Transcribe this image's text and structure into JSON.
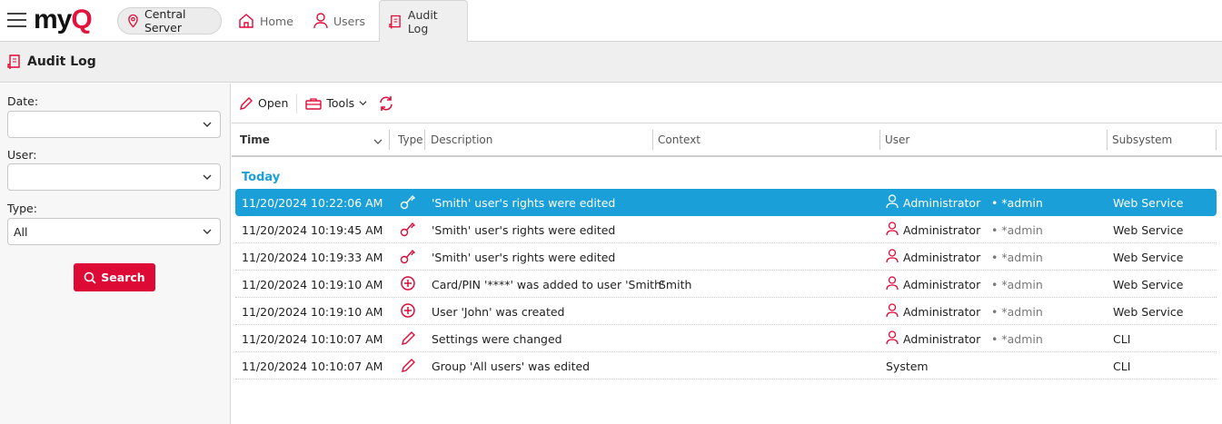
{
  "app": {
    "logo": "myQ",
    "server": "Central Server"
  },
  "tabs": [
    {
      "label": "Home",
      "icon": "home-icon"
    },
    {
      "label": "Users",
      "icon": "user-icon"
    },
    {
      "label": "Audit Log",
      "icon": "audit-log-icon",
      "active": true
    }
  ],
  "page_title": "Audit Log",
  "filters": {
    "date_label": "Date:",
    "date_value": "",
    "user_label": "User:",
    "user_value": "",
    "type_label": "Type:",
    "type_value": "All",
    "search_label": "Search"
  },
  "toolbar": {
    "open": "Open",
    "tools": "Tools"
  },
  "columns": [
    "Time",
    "Type",
    "Description",
    "Context",
    "User",
    "Subsystem"
  ],
  "group": "Today",
  "rows": [
    {
      "time": "11/20/2024 10:22:06 AM",
      "type": "key",
      "description": "'Smith' user's rights were edited",
      "context": "",
      "user": "Administrator",
      "login": "• *admin",
      "subsystem": "Web Service",
      "selected": true
    },
    {
      "time": "11/20/2024 10:19:45 AM",
      "type": "key",
      "description": "'Smith' user's rights were edited",
      "context": "",
      "user": "Administrator",
      "login": "• *admin",
      "subsystem": "Web Service"
    },
    {
      "time": "11/20/2024 10:19:33 AM",
      "type": "key",
      "description": "'Smith' user's rights were edited",
      "context": "",
      "user": "Administrator",
      "login": "• *admin",
      "subsystem": "Web Service"
    },
    {
      "time": "11/20/2024 10:19:10 AM",
      "type": "add",
      "description": "Card/PIN '****' was added to user 'Smith'",
      "context": "Smith",
      "user": "Administrator",
      "login": "• *admin",
      "subsystem": "Web Service"
    },
    {
      "time": "11/20/2024 10:19:10 AM",
      "type": "add",
      "description": "User 'John' was created",
      "context": "",
      "user": "Administrator",
      "login": "• *admin",
      "subsystem": "Web Service"
    },
    {
      "time": "11/20/2024 10:10:07 AM",
      "type": "edit",
      "description": "Settings were changed",
      "context": "",
      "user": "Administrator",
      "login": "• *admin",
      "subsystem": "CLI"
    },
    {
      "time": "11/20/2024 10:10:07 AM",
      "type": "edit",
      "description": "Group 'All users' was edited",
      "context": "",
      "user": "System",
      "login": "",
      "subsystem": "CLI"
    }
  ],
  "colors": {
    "accent": "#de0a36",
    "selection": "#1a9fd9"
  }
}
